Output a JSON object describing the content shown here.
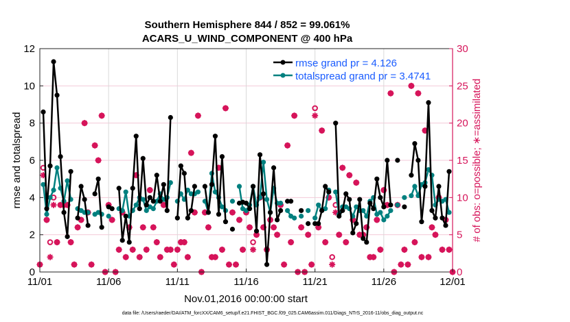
{
  "chart_data": {
    "type": "line",
    "title": "Southern Hemisphere 844 / 852 = 99.061%",
    "subtitle": "ACARS_U_WIND_COMPONENT @ 400 hPa",
    "xlabel": "Nov.01,2016 00:00:00 start",
    "ylabel": "rmse and totalspread",
    "y2label": "# of obs: o=possible; ∗=assimilated",
    "footer": "data file: /Users/raeder/DAI/ATM_forcXX/CAM6_setup/f.e21.FHIST_BGC.f09_025.CAM6assim.011/Diags_NTrS_2016-11/obs_diag_output.nc",
    "x_unit": "days since 11/01 (6-hourly bins, index/4)",
    "xlim": [
      0,
      30
    ],
    "ylim": [
      0,
      12
    ],
    "y2lim": [
      0,
      30
    ],
    "xticks": [
      0,
      5,
      10,
      15,
      20,
      25,
      30
    ],
    "xtick_labels": [
      "11/01",
      "11/06",
      "11/11",
      "11/16",
      "11/21",
      "11/26",
      "12/01"
    ],
    "yticks": [
      "0",
      "2",
      "4",
      "6",
      "8",
      "10",
      "12"
    ],
    "y2ticks": [
      "0",
      "5",
      "10",
      "15",
      "20",
      "25",
      "30"
    ],
    "grid": true,
    "legend_position": "top-right",
    "colors": {
      "rmse": "#000000",
      "spread": "#00807f",
      "obs": "#d6145a",
      "legend_text": "#1a5cff",
      "grid_h": "#f3c9d8",
      "grid_v": "#d9d9d9"
    },
    "series": [
      {
        "name": "rmse grand pr = 4.126",
        "key": "rmse",
        "values": [
          null,
          8.6,
          3.4,
          5.7,
          11.3,
          9.5,
          6.2,
          3.2,
          1.9,
          5.4,
          null,
          2.9,
          4.6,
          3.9,
          2.5,
          null,
          4.2,
          5.0,
          2.4,
          null,
          3.5,
          3.4,
          null,
          4.5,
          1.7,
          3.0,
          1.6,
          4.5,
          7.3,
          3.4,
          6.1,
          3.6,
          4.0,
          3.8,
          5.2,
          3.8,
          4.7,
          3.3,
          8.3,
          null,
          2.9,
          5.7,
          5.3,
          2.9,
          3.3,
          4.6,
          null,
          null,
          4.6,
          3.2,
          4.7,
          7.3,
          3.1,
          6.2,
          2.7,
          null,
          2.3,
          null,
          3.7,
          3.75,
          3.7,
          3.4,
          4.6,
          2.2,
          6.3,
          4.2,
          0.4,
          3.2,
          5.6,
          2.8,
          3.3,
          null,
          3.8,
          3.8,
          null,
          null,
          3.3,
          null,
          2.6,
          null,
          2.6,
          2.6,
          3.3,
          4.6,
          4.3,
          null,
          8.0,
          3.0,
          3.3,
          4.2,
          3.9,
          2.1,
          2.6,
          3.9,
          1.8,
          1.6,
          3.7,
          3.4,
          5.0,
          4.0,
          3.5,
          6.0,
          3.6,
          null,
          6.0,
          null,
          3.5,
          null,
          5.2,
          6.9,
          6.0,
          2.7,
          4.6,
          9.1,
          3.3,
          2.9,
          4.6,
          2.9,
          2.5,
          5.4,
          null
        ]
      },
      {
        "name": "totalspread grand pr = 3.4741",
        "key": "spread",
        "values": [
          null,
          4.7,
          3.1,
          4.0,
          4.4,
          5.6,
          4.5,
          3.8,
          4.9,
          3.9,
          null,
          3.4,
          3.3,
          3.2,
          3.2,
          null,
          3.1,
          3.2,
          3.1,
          null,
          3.0,
          null,
          null,
          3.4,
          3.3,
          4.3,
          3.0,
          3.3,
          3.6,
          4.0,
          3.9,
          3.3,
          3.5,
          3.4,
          3.8,
          4.2,
          3.9,
          4.0,
          4.8,
          null,
          3.8,
          4.2,
          3.9,
          4.4,
          4.2,
          4.2,
          4.3,
          null,
          3.8,
          3.2,
          5.3,
          4.3,
          4.0,
          3.5,
          3.3,
          null,
          3.8,
          null,
          4.6,
          3.4,
          3.3,
          3.6,
          4.6,
          3.6,
          4.0,
          5.9,
          3.9,
          3.2,
          4.5,
          3.7,
          3.7,
          null,
          3.3,
          3.0,
          2.9,
          null,
          3.0,
          null,
          3.3,
          null,
          2.9,
          3.6,
          3.3,
          3.4,
          4.4,
          null,
          4.3,
          3.1,
          3.5,
          3.5,
          3.4,
          3.0,
          3.5,
          3.3,
          3.3,
          3.0,
          3.8,
          4.0,
          3.1,
          3.2,
          2.8,
          3.0,
          3.3,
          null,
          3.6,
          null,
          4.0,
          null,
          4.1,
          4.6,
          4.1,
          4.7,
          4.8,
          5.5,
          5.2,
          3.6,
          3.9,
          3.8,
          3.9,
          3.2,
          null
        ]
      },
      {
        "name": "assimilated",
        "key": "assimilated",
        "axis": "right",
        "values": [
          1,
          13,
          7,
          2,
          9,
          4,
          9,
          9,
          9,
          4,
          1,
          6,
          7,
          20,
          8,
          1,
          17,
          15,
          21,
          0,
          9,
          7,
          0,
          3,
          8,
          2,
          6,
          3,
          13,
          2,
          6,
          3,
          11,
          6,
          4,
          2,
          9,
          3,
          3,
          1,
          3,
          4,
          4,
          2,
          16,
          8,
          21,
          0,
          8,
          6,
          2,
          2,
          14,
          3,
          22,
          1,
          8,
          1,
          7,
          3,
          8,
          6,
          3,
          5,
          10,
          6,
          3,
          7,
          6,
          5,
          9,
          1,
          17,
          4,
          21,
          0,
          6,
          0,
          5,
          1,
          21,
          6,
          19,
          4,
          10,
          1,
          8,
          5,
          14,
          4,
          13,
          7,
          12,
          5,
          5,
          6,
          2,
          2,
          7,
          3,
          11,
          9,
          24,
          0,
          9,
          1,
          3,
          1,
          25,
          4,
          24,
          2,
          19,
          2,
          6,
          5,
          10,
          3,
          7,
          3,
          0
        ]
      },
      {
        "name": "possible",
        "key": "possible",
        "axis": "right",
        "values": [
          1,
          14,
          7,
          4,
          10,
          4,
          9,
          9,
          9,
          4,
          1,
          6,
          7,
          20,
          8,
          1,
          17,
          15,
          21,
          0,
          9,
          7,
          0,
          3,
          8,
          2,
          6,
          3,
          13,
          2,
          6,
          3,
          11,
          6,
          4,
          2,
          9,
          3,
          3,
          1,
          3,
          4,
          4,
          2,
          16,
          8,
          21,
          0,
          8,
          6,
          2,
          2,
          14,
          3,
          22,
          1,
          8,
          1,
          7,
          3,
          8,
          6,
          4,
          5,
          10,
          6,
          3,
          7,
          6,
          5,
          9,
          1,
          17,
          4,
          21,
          0,
          6,
          0,
          5,
          1,
          22,
          6,
          19,
          4,
          10,
          2,
          9,
          5,
          14,
          4,
          13,
          7,
          12,
          5,
          5,
          6,
          2,
          2,
          7,
          3,
          11,
          9,
          24,
          0,
          9,
          1,
          3,
          1,
          25,
          4,
          24,
          2,
          19,
          2,
          6,
          5,
          10,
          3,
          7,
          3,
          0
        ]
      }
    ]
  }
}
